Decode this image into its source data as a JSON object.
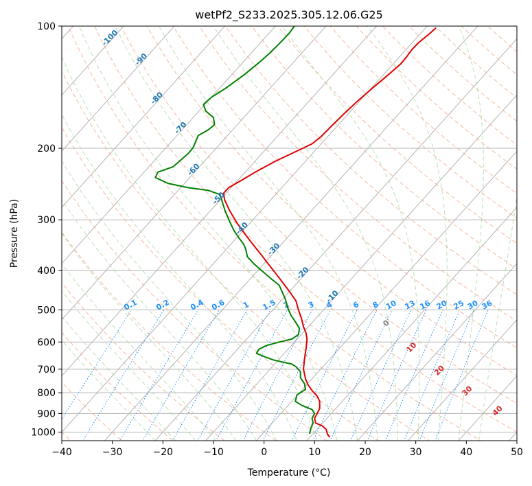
{
  "chart_data": {
    "type": "line",
    "title": "wetPf2_S233.2025.305.12.06.G25",
    "xlabel": "Temperature (°C)",
    "ylabel": "Pressure (hPa)",
    "xlim": [
      -40,
      50
    ],
    "ylim": [
      1050,
      100
    ],
    "y_scale": "log",
    "grid": true,
    "x_ticks": [
      "−40",
      "−30",
      "−20",
      "−10",
      "0",
      "10",
      "20",
      "30",
      "40",
      "50"
    ],
    "y_ticks": [
      "1000",
      "900",
      "800",
      "700",
      "600",
      "500",
      "400",
      "300",
      "200",
      "100"
    ],
    "series": [
      {
        "name": "",
        "color": "#e00000",
        "points": [
          [
            13.0,
            1030
          ],
          [
            12.5,
            1010
          ],
          [
            12.3,
            985
          ],
          [
            11.5,
            965
          ],
          [
            10.2,
            950
          ],
          [
            10.0,
            925
          ],
          [
            10.5,
            900
          ],
          [
            11.0,
            875
          ],
          [
            11.0,
            840
          ],
          [
            10.5,
            815
          ],
          [
            9.5,
            790
          ],
          [
            8.7,
            765
          ],
          [
            8.2,
            740
          ],
          [
            7.8,
            700
          ],
          [
            8.0,
            660
          ],
          [
            8.3,
            625
          ],
          [
            8.5,
            590
          ],
          [
            8.3,
            570
          ],
          [
            7.8,
            550
          ],
          [
            7.4,
            525
          ],
          [
            6.8,
            500
          ],
          [
            6.3,
            475
          ],
          [
            5.0,
            450
          ],
          [
            3.5,
            425
          ],
          [
            2.2,
            405
          ],
          [
            0.8,
            385
          ],
          [
            -0.6,
            365
          ],
          [
            -2.2,
            345
          ],
          [
            -3.8,
            325
          ],
          [
            -5.4,
            305
          ],
          [
            -6.8,
            285
          ],
          [
            -7.8,
            268
          ],
          [
            -8.0,
            258
          ],
          [
            -7.0,
            250
          ],
          [
            -4.5,
            240
          ],
          [
            -1.5,
            228
          ],
          [
            2.3,
            215
          ],
          [
            6.2,
            204
          ],
          [
            9.5,
            195
          ],
          [
            11.3,
            187
          ],
          [
            13.4,
            176
          ],
          [
            15.9,
            164
          ],
          [
            18.5,
            153
          ],
          [
            21.2,
            143
          ],
          [
            24.2,
            133
          ],
          [
            27.0,
            124
          ],
          [
            28.2,
            119
          ],
          [
            29.3,
            114
          ],
          [
            30.5,
            110
          ],
          [
            32.5,
            105
          ],
          [
            34.0,
            101
          ]
        ]
      },
      {
        "name": "",
        "color": "#008000",
        "points": [
          [
            9.0,
            1010
          ],
          [
            9.3,
            975
          ],
          [
            9.7,
            950
          ],
          [
            9.5,
            925
          ],
          [
            10.0,
            900
          ],
          [
            9.5,
            880
          ],
          [
            7.5,
            860
          ],
          [
            6.2,
            840
          ],
          [
            6.5,
            810
          ],
          [
            8.2,
            785
          ],
          [
            8.0,
            760
          ],
          [
            7.2,
            735
          ],
          [
            7.2,
            710
          ],
          [
            6.3,
            690
          ],
          [
            5.5,
            680
          ],
          [
            2.0,
            665
          ],
          [
            0.5,
            655
          ],
          [
            -1.5,
            640
          ],
          [
            -1.0,
            625
          ],
          [
            0.5,
            612
          ],
          [
            3.0,
            600
          ],
          [
            5.5,
            590
          ],
          [
            6.8,
            575
          ],
          [
            7.0,
            555
          ],
          [
            6.2,
            535
          ],
          [
            5.3,
            515
          ],
          [
            4.7,
            495
          ],
          [
            4.2,
            470
          ],
          [
            3.7,
            455
          ],
          [
            3.0,
            435
          ],
          [
            1.5,
            420
          ],
          [
            -0.5,
            400
          ],
          [
            -2.0,
            385
          ],
          [
            -3.3,
            370
          ],
          [
            -3.6,
            355
          ],
          [
            -4.0,
            345
          ],
          [
            -5.0,
            332
          ],
          [
            -6.0,
            318
          ],
          [
            -6.8,
            303
          ],
          [
            -7.7,
            285
          ],
          [
            -8.3,
            270
          ],
          [
            -8.7,
            260
          ],
          [
            -11.0,
            254
          ],
          [
            -15.0,
            250
          ],
          [
            -19.0,
            244
          ],
          [
            -21.5,
            236
          ],
          [
            -21.0,
            229
          ],
          [
            -18.0,
            222
          ],
          [
            -16.5,
            214
          ],
          [
            -15.0,
            206
          ],
          [
            -14.0,
            199
          ],
          [
            -13.5,
            192
          ],
          [
            -13.0,
            186
          ],
          [
            -11.0,
            180
          ],
          [
            -9.8,
            175
          ],
          [
            -10.0,
            168
          ],
          [
            -11.5,
            162
          ],
          [
            -12.0,
            156
          ],
          [
            -10.5,
            150
          ],
          [
            -7.5,
            142
          ],
          [
            -4.0,
            132
          ],
          [
            -1.0,
            123
          ],
          [
            1.0,
            117
          ],
          [
            3.5,
            109
          ],
          [
            5.0,
            104
          ],
          [
            6.0,
            100
          ]
        ]
      }
    ],
    "dry_adiabat_labels": [
      "-100",
      "-90",
      "-80",
      "-70",
      "-60",
      "-50",
      "-40",
      "-30",
      "-20",
      "-10"
    ],
    "mixing_ratio_labels": [
      "0.1",
      "0.2",
      "0.4",
      "0.6",
      "1",
      "1.5",
      "2",
      "3",
      "4",
      "6",
      "8",
      "10",
      "13",
      "16",
      "20",
      "25",
      "30",
      "36"
    ],
    "moist_adiabat_labels": [
      "0",
      "10",
      "20",
      "30",
      "40"
    ],
    "colors": {
      "isotherm": "#b3b3b3",
      "isobar": "#b3b3b3",
      "dry_adiabat": "#f4a582",
      "moist_adiabat": "#a6d9a0",
      "mixing_ratio": "#1e90ff",
      "dry_label": "#1f77b4",
      "moist_label": "#d62728",
      "moist_label_zero": "#7f7f7f",
      "dry_ref": "#d9c8a8"
    }
  }
}
